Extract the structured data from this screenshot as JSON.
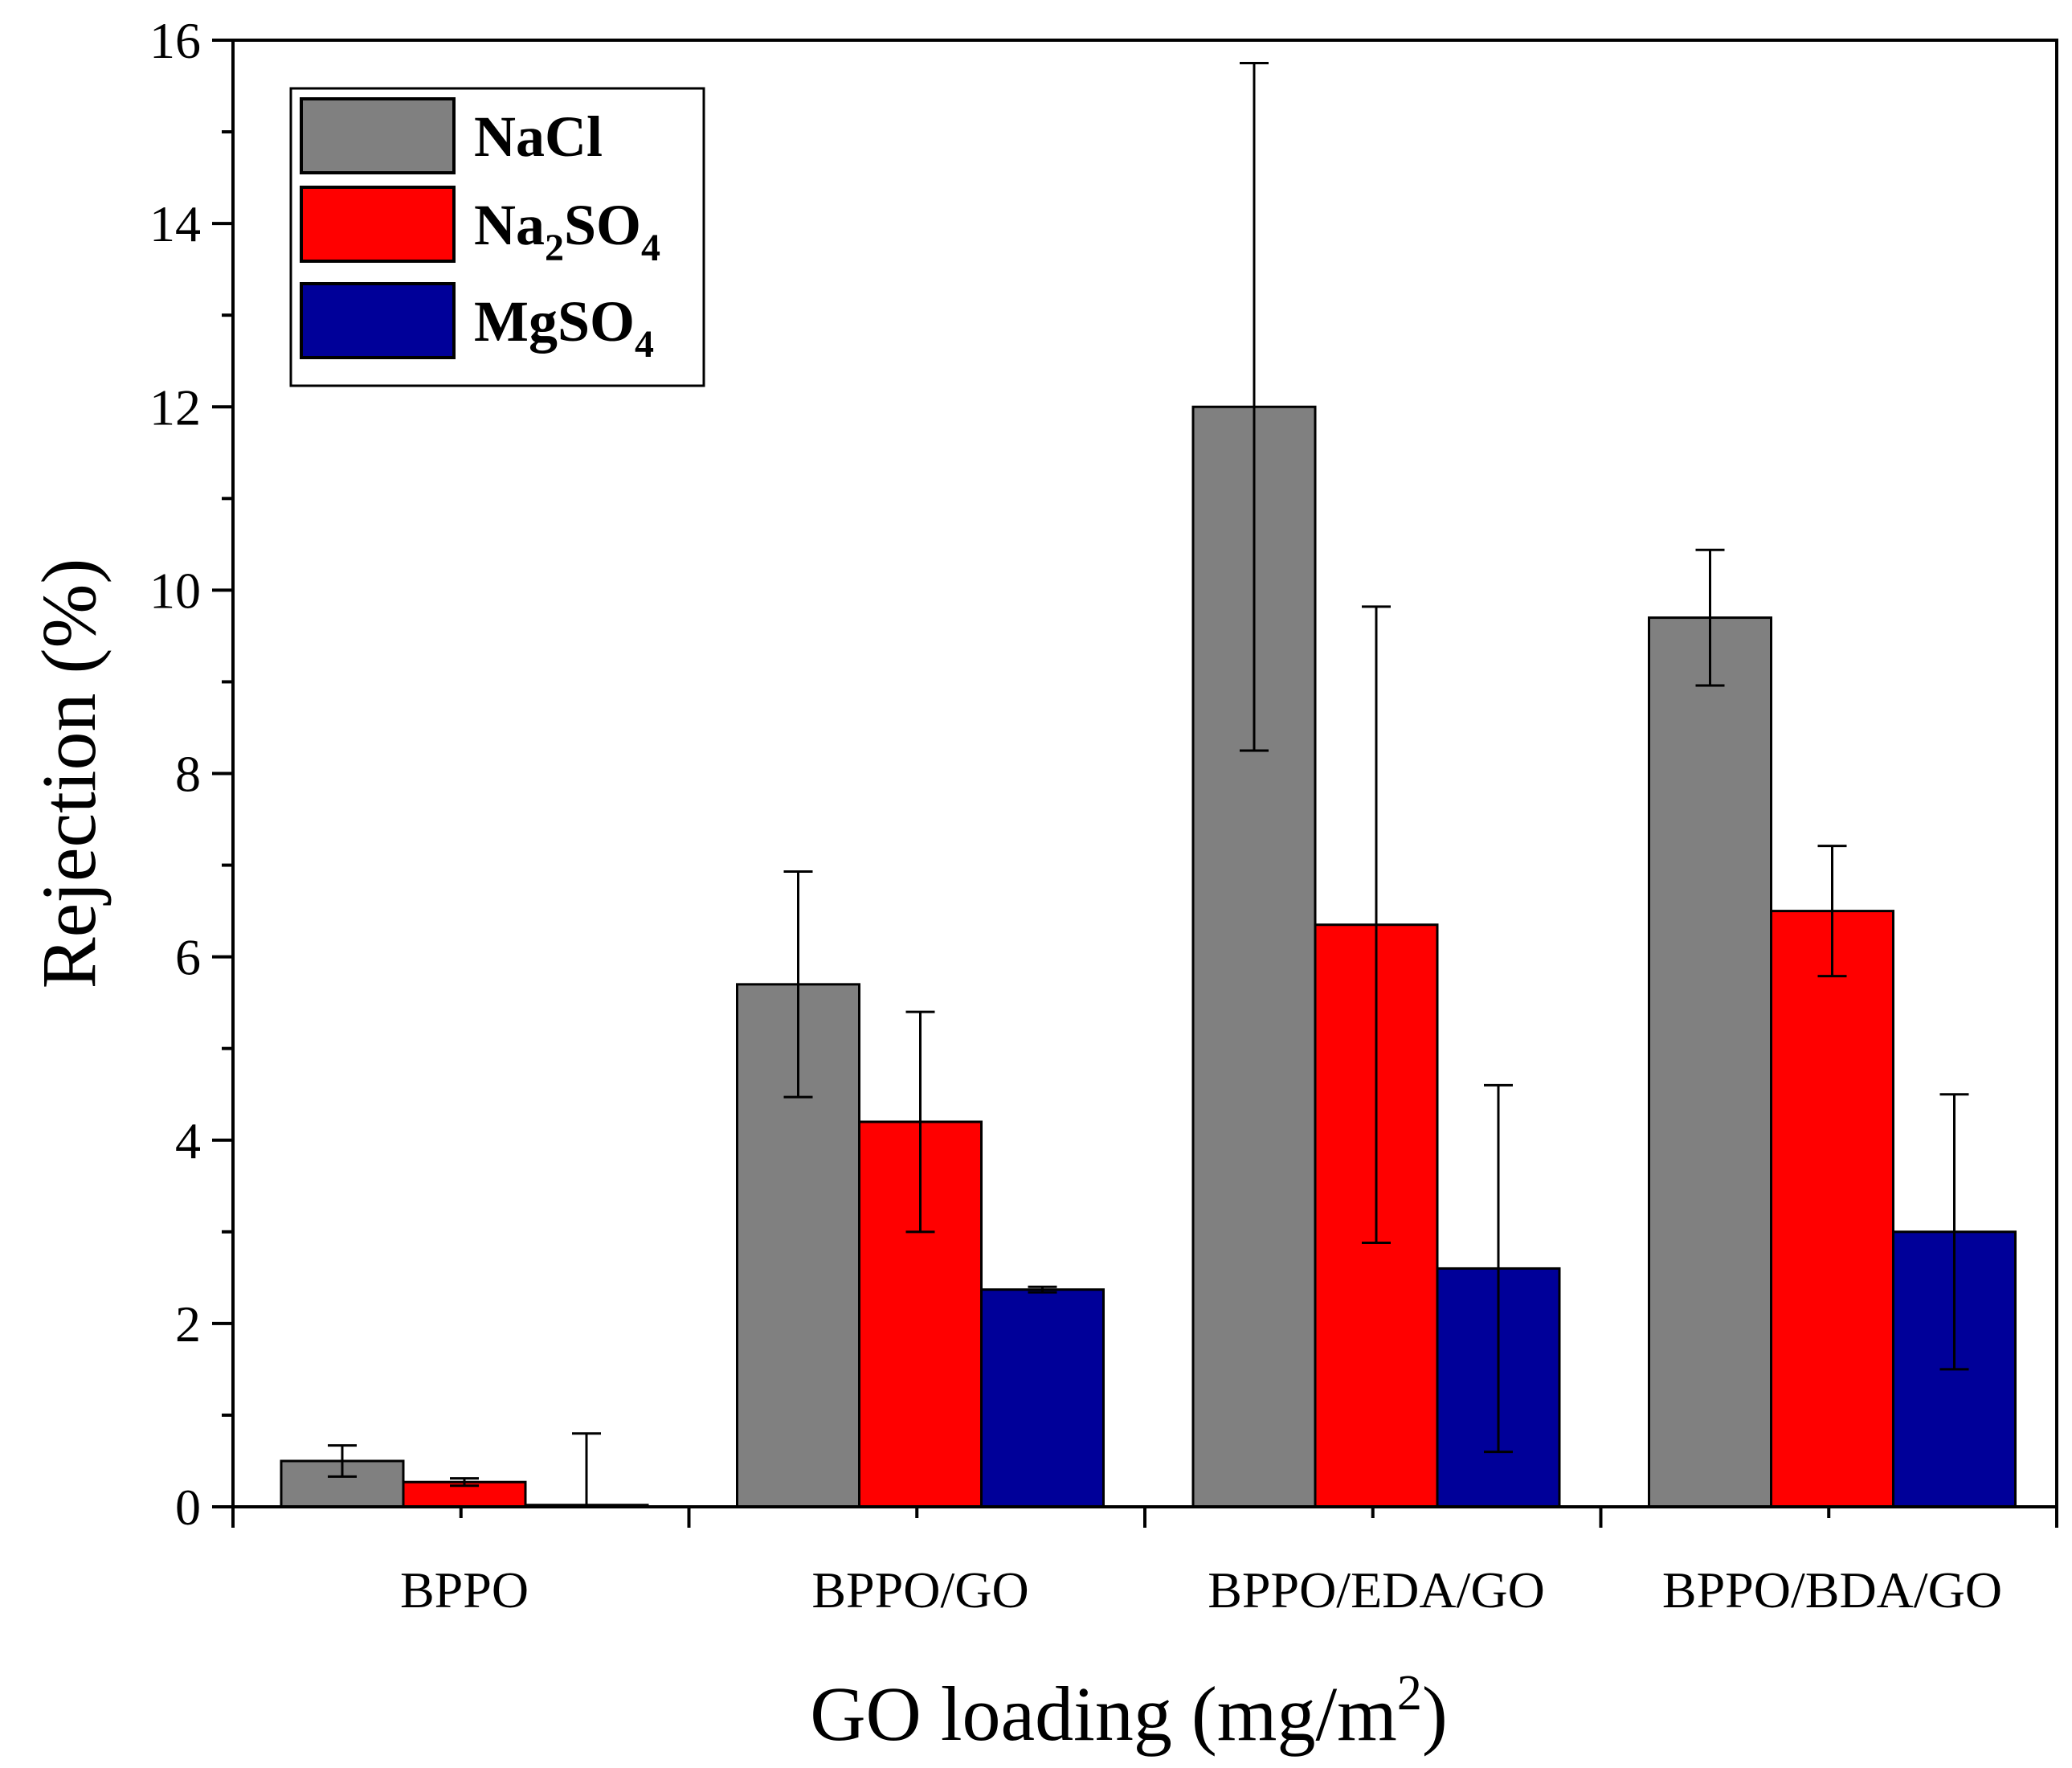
{
  "chart_data": {
    "type": "bar",
    "title": "",
    "xlabel": {
      "main": "GO loading (mg/m",
      "sup": "2",
      "end": ")"
    },
    "ylabel": "Rejection (%)",
    "ylim": [
      0,
      16
    ],
    "yticks": [
      0,
      2,
      4,
      6,
      8,
      10,
      12,
      14,
      16
    ],
    "grid": false,
    "legend_position": "top-left",
    "categories": [
      "BPPO",
      "BPPO/GO",
      "BPPO/EDA/GO",
      "BPPO/BDA/GO"
    ],
    "series": [
      {
        "name": "NaCl",
        "legend": {
          "base": "NaCl",
          "sub": "",
          "end": ""
        },
        "color": "#808080",
        "values": [
          0.5,
          5.7,
          12.0,
          9.7
        ],
        "errors": [
          0.17,
          1.23,
          3.75,
          0.74
        ]
      },
      {
        "name": "Na2SO4",
        "legend": {
          "base": "Na",
          "sub": "2",
          "end": "SO",
          "sub2": "4"
        },
        "color": "#ff0000",
        "values": [
          0.27,
          4.2,
          6.35,
          6.5
        ],
        "errors": [
          0.04,
          1.2,
          3.47,
          0.71
        ]
      },
      {
        "name": "MgSO4",
        "legend": {
          "base": "MgSO",
          "sub": "4",
          "end": ""
        },
        "color": "#000099",
        "values": [
          0.02,
          2.37,
          2.6,
          3.0
        ],
        "errors": [
          0.78,
          0.03,
          2.0,
          1.5
        ]
      }
    ]
  }
}
